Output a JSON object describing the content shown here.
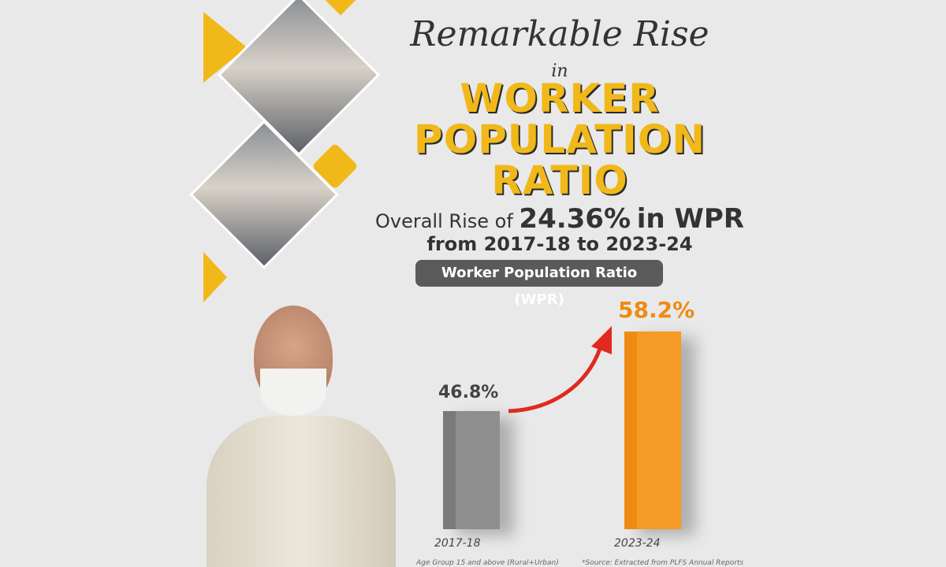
{
  "title_script": "Remarkable Rise",
  "title_connector": "in",
  "title_main": [
    "WORKER",
    "POPULATION",
    "RATIO"
  ],
  "subtitle": {
    "prefix": "Overall Rise of",
    "value": "24.36%",
    "suffix": "in WPR",
    "line2": "from 2017-18 to 2023-24"
  },
  "chart_pill": "Worker Population Ratio (WPR)",
  "chart_data": {
    "type": "bar",
    "title": "Worker Population Ratio (WPR)",
    "categories": [
      "2017-18",
      "2023-24"
    ],
    "values": [
      46.8,
      58.2
    ],
    "value_labels": [
      "46.8%",
      "58.2%"
    ],
    "colors": [
      "#7a7a7a",
      "#f08a12"
    ],
    "grid": false,
    "annotation": "red arrow rising from 2017-18 to 2023-24"
  },
  "footnotes": {
    "left": "Age Group 15 and above (Rural+Urban)",
    "right": "*Source: Extracted from PLFS Annual Reports"
  },
  "colors": {
    "accent": "#f1b81a",
    "background": "#e9e9ea",
    "arrow": "#e02a1f"
  }
}
